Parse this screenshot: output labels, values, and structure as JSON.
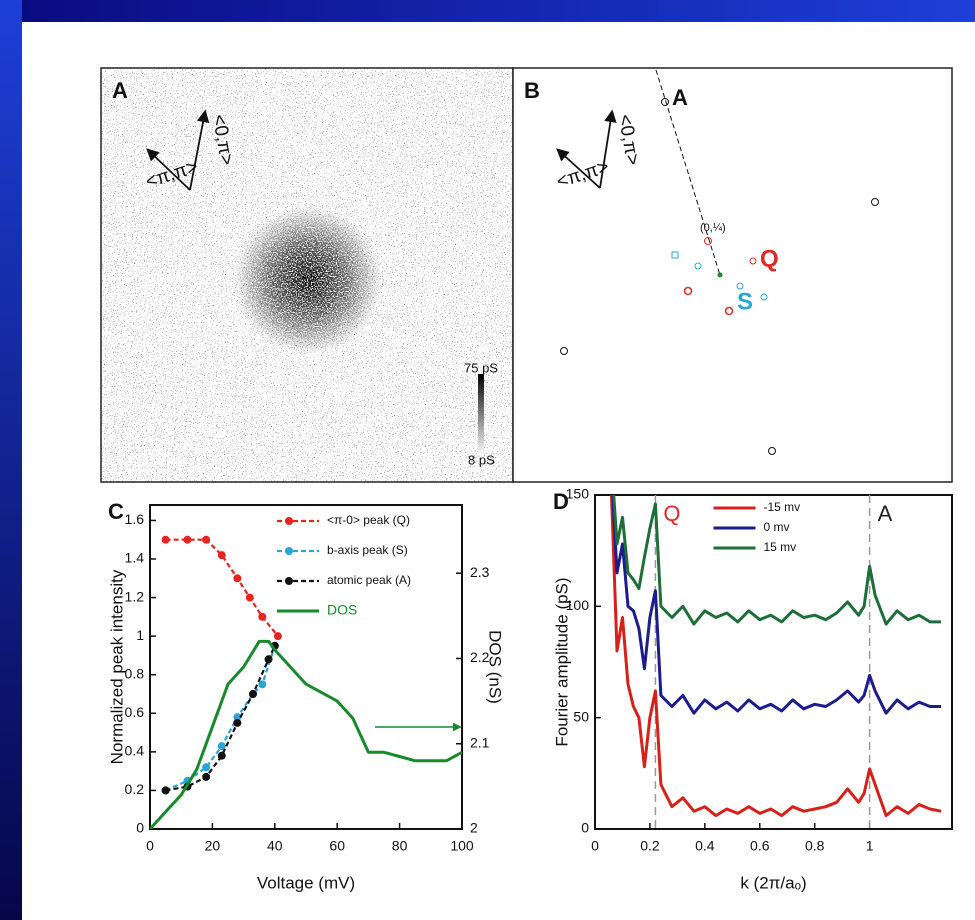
{
  "panels": {
    "A": {
      "label": "A",
      "axis_labels": [
        "<0,π>",
        "<π,π>"
      ],
      "scale_top": "75 pS",
      "scale_bottom": "8 pS"
    },
    "B": {
      "label": "B",
      "axis_labels": [
        "<0,π>",
        "<π,π>"
      ],
      "point_labels": [
        "A",
        "(0,¼)"
      ],
      "peak_labels": [
        "Q",
        "S"
      ]
    }
  },
  "chart_data": [
    {
      "type": "line",
      "panel": "C",
      "xlabel": "Voltage (mV)",
      "ylabel": "Normalized peak intensity",
      "y2label": "DOS (nS)",
      "xlim": [
        0,
        100
      ],
      "xticks": [
        0,
        20,
        40,
        60,
        80,
        100
      ],
      "ylim": [
        0,
        1.68
      ],
      "yticks": [
        0,
        0.2,
        0.4,
        0.6,
        0.8,
        1,
        1.2,
        1.4,
        1.6
      ],
      "y2lim": [
        2,
        2.38
      ],
      "y2ticks": [
        2,
        2.1,
        2.2,
        2.3
      ],
      "legend": "upper right",
      "series": [
        {
          "name": "<π-0> peak (Q)",
          "color": "#e8231f",
          "dashed": true,
          "marker": true,
          "x": [
            5,
            12,
            18,
            23,
            28,
            32,
            36,
            41
          ],
          "values": [
            1.5,
            1.5,
            1.5,
            1.42,
            1.3,
            1.2,
            1.1,
            1.0
          ]
        },
        {
          "name": "b-axis peak (S)",
          "color": "#2aa6d6",
          "dashed": true,
          "marker": true,
          "x": [
            5,
            12,
            18,
            23,
            28,
            33,
            36,
            40
          ],
          "values": [
            0.2,
            0.25,
            0.32,
            0.43,
            0.58,
            0.7,
            0.75,
            0.95
          ]
        },
        {
          "name": "atomic peak (A)",
          "color": "#111111",
          "dashed": true,
          "marker": true,
          "x": [
            5,
            12,
            18,
            23,
            28,
            33,
            38,
            40
          ],
          "values": [
            0.2,
            0.22,
            0.27,
            0.38,
            0.55,
            0.7,
            0.88,
            0.95
          ]
        },
        {
          "name": "DOS",
          "color": "#178a2c",
          "dashed": false,
          "marker": false,
          "axis": "y2",
          "x": [
            0,
            5,
            10,
            15,
            20,
            25,
            30,
            35,
            38,
            40,
            45,
            50,
            55,
            60,
            65,
            70,
            75,
            80,
            85,
            90,
            95,
            100
          ],
          "values": [
            2.0,
            2.02,
            2.04,
            2.07,
            2.12,
            2.17,
            2.19,
            2.22,
            2.22,
            2.21,
            2.19,
            2.17,
            2.16,
            2.15,
            2.13,
            2.09,
            2.09,
            2.085,
            2.08,
            2.08,
            2.08,
            2.09
          ]
        }
      ]
    },
    {
      "type": "line",
      "panel": "D",
      "xlabel": "k (2π/aₒ)",
      "ylabel": "Fourier amplitude (pS)",
      "xlim": [
        0,
        1.3
      ],
      "xticks": [
        0,
        0.2,
        0.4,
        0.6,
        0.8,
        1
      ],
      "ylim": [
        0,
        150
      ],
      "yticks": [
        0,
        50,
        100,
        150
      ],
      "legend": "upper center",
      "vlines": [
        0.22,
        1
      ],
      "annotations": [
        {
          "text": "Q",
          "color": "#e02a20"
        },
        {
          "text": "A",
          "color": "#222222"
        }
      ],
      "x": [
        0.06,
        0.08,
        0.1,
        0.12,
        0.14,
        0.16,
        0.18,
        0.2,
        0.22,
        0.24,
        0.28,
        0.32,
        0.36,
        0.4,
        0.44,
        0.48,
        0.52,
        0.56,
        0.6,
        0.64,
        0.68,
        0.72,
        0.76,
        0.8,
        0.84,
        0.88,
        0.92,
        0.96,
        0.98,
        1.0,
        1.02,
        1.06,
        1.1,
        1.14,
        1.18,
        1.22,
        1.26
      ],
      "series": [
        {
          "name": "-15 mv",
          "color": "#d8201a",
          "values": [
            150,
            80,
            95,
            65,
            55,
            50,
            28,
            50,
            62,
            20,
            10,
            14,
            8,
            10,
            6,
            9,
            7,
            10,
            7,
            9,
            6,
            10,
            8,
            9,
            10,
            12,
            18,
            12,
            16,
            27,
            20,
            6,
            10,
            7,
            11,
            9,
            8
          ]
        },
        {
          "name": "0 mv",
          "color": "#1c1c8c",
          "values": [
            160,
            115,
            128,
            100,
            98,
            90,
            72,
            95,
            107,
            60,
            55,
            60,
            52,
            58,
            54,
            57,
            53,
            58,
            54,
            56,
            53,
            58,
            54,
            56,
            55,
            58,
            62,
            57,
            60,
            69,
            62,
            52,
            58,
            54,
            57,
            55,
            55
          ]
        },
        {
          "name": "15 mv",
          "color": "#1e6e3a",
          "values": [
            165,
            128,
            140,
            115,
            112,
            108,
            122,
            135,
            146,
            100,
            95,
            100,
            92,
            98,
            95,
            97,
            93,
            98,
            94,
            96,
            93,
            98,
            95,
            96,
            94,
            97,
            102,
            96,
            100,
            118,
            105,
            92,
            98,
            94,
            96,
            93,
            93
          ]
        }
      ]
    }
  ]
}
